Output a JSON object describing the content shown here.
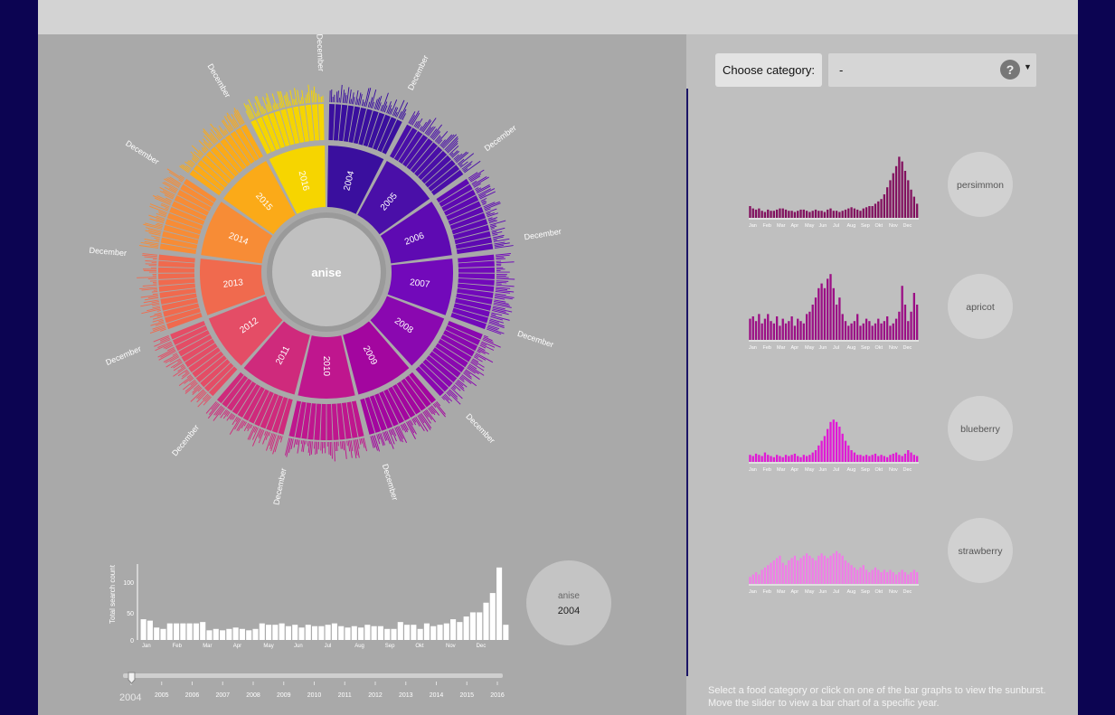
{
  "category": {
    "label": "Choose category:",
    "value": "-",
    "help": "?"
  },
  "sunburst": {
    "center_label": "anise",
    "years": [
      "2004",
      "2005",
      "2006",
      "2007",
      "2008",
      "2009",
      "2010",
      "2011",
      "2012",
      "2013",
      "2014",
      "2015",
      "2016"
    ],
    "month_label": "December",
    "colors": [
      "#3a0f9e",
      "#4a0fa8",
      "#5e0ab2",
      "#7209ba",
      "#8a08b0",
      "#a3069f",
      "#bf168e",
      "#cf2a7c",
      "#e44d66",
      "#f06a4e",
      "#f78c36",
      "#fbaa18",
      "#f6d500"
    ]
  },
  "yearly_chart": {
    "ylabel": "Total search count",
    "yticks": [
      "100",
      "50",
      "0"
    ],
    "month_ticks": [
      "Jan",
      "Feb",
      "Mar",
      "Apr",
      "May",
      "Jun",
      "Jul",
      "Aug",
      "Sep",
      "Okt",
      "Nov",
      "Dec"
    ],
    "badge_name": "anise",
    "badge_year": "2004"
  },
  "slider": {
    "year_current": "2004",
    "years": [
      "2005",
      "2006",
      "2007",
      "2008",
      "2009",
      "2010",
      "2011",
      "2012",
      "2013",
      "2014",
      "2015",
      "2016"
    ]
  },
  "small_charts": [
    {
      "name": "persimmon",
      "color": "#82115f"
    },
    {
      "name": "apricot",
      "color": "#9b0e85"
    },
    {
      "name": "blueberry",
      "color": "#e118d6"
    },
    {
      "name": "strawberry",
      "color": "#f07ce8"
    }
  ],
  "small_month_ticks": [
    "Jan",
    "Feb",
    "Mar",
    "Apr",
    "May",
    "Jun",
    "Jul",
    "Aug",
    "Sep",
    "Okt",
    "Nov",
    "Dec"
  ],
  "footer": {
    "line1": "Select a food category or click on one of the bar graphs to view the sunburst.",
    "line2": "Move the slider to view a bar chart of a specific year."
  },
  "chart_data": [
    {
      "type": "bar",
      "title": "",
      "xlabel": "",
      "ylabel": "Total search count",
      "ylim": [
        0,
        110
      ],
      "series": [
        {
          "values": [
            30,
            28,
            18,
            16,
            24,
            24,
            24,
            24,
            24,
            26,
            14,
            16,
            14,
            16,
            18,
            16,
            14,
            16,
            24,
            22,
            22,
            24,
            20,
            22,
            18,
            22,
            20,
            20,
            22,
            24,
            20,
            18,
            20,
            18,
            22,
            20,
            20,
            16,
            16,
            26,
            22,
            22,
            16,
            24,
            20,
            22,
            24,
            30,
            26,
            34,
            40,
            40,
            54,
            68,
            105,
            22
          ]
        }
      ]
    }
  ]
}
